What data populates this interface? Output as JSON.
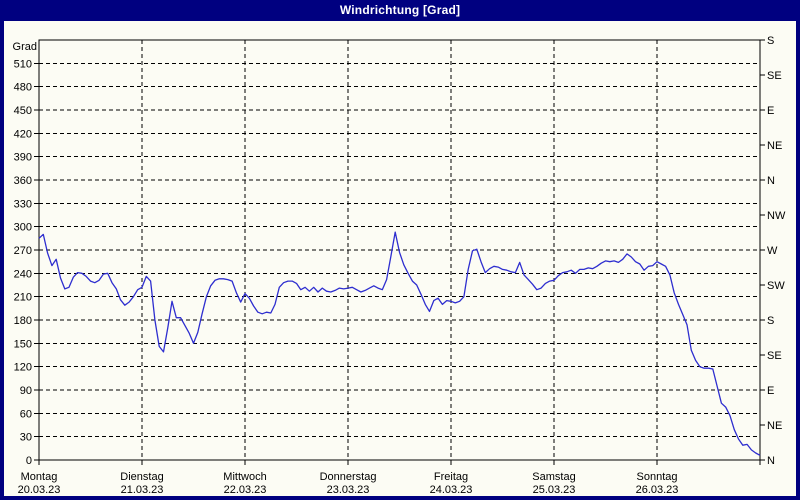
{
  "window": {
    "title": "Windrichtung [Grad]"
  },
  "colors": {
    "window_border": "#000080",
    "titlebar_bg": "#000080",
    "titlebar_text": "#ffffff",
    "chart_bg": "#fcfcf4",
    "plot_frame": "#000000",
    "grid": "#000000",
    "line": "#2e2ecf",
    "label_text": "#000000"
  },
  "chart_data": {
    "type": "line",
    "title": "Windrichtung [Grad]",
    "ylabel": "Grad",
    "ylim": [
      0,
      540
    ],
    "grid": "dashed",
    "legend_position": "none",
    "y_ticks_left": {
      "start": 0,
      "end": 510,
      "step": 30
    },
    "y_ticks_right": {
      "step_deg": 45,
      "labels_bottom_to_top": [
        "N",
        "NE",
        "E",
        "SE",
        "S",
        "SW",
        "W",
        "NW",
        "N",
        "NE",
        "E",
        "SE",
        "S"
      ]
    },
    "x_days": [
      {
        "name": "Montag",
        "date": "20.03.23"
      },
      {
        "name": "Dienstag",
        "date": "21.03.23"
      },
      {
        "name": "Mittwoch",
        "date": "22.03.23"
      },
      {
        "name": "Donnerstag",
        "date": "23.03.23"
      },
      {
        "name": "Freitag",
        "date": "24.03.23"
      },
      {
        "name": "Samstag",
        "date": "25.03.23"
      },
      {
        "name": "Sonntag",
        "date": "26.03.23"
      }
    ],
    "sampling": "hourly estimates, Monday 00:00 through Sunday 24:00",
    "series": [
      {
        "name": "Windrichtung",
        "unit": "Grad",
        "values": [
          285,
          290,
          266,
          250,
          258,
          234,
          220,
          222,
          235,
          241,
          240,
          236,
          230,
          228,
          231,
          239,
          240,
          228,
          220,
          206,
          199,
          203,
          210,
          219,
          222,
          236,
          230,
          180,
          146,
          139,
          170,
          204,
          183,
          183,
          173,
          163,
          150,
          164,
          188,
          210,
          224,
          231,
          233,
          233,
          232,
          230,
          215,
          203,
          214,
          208,
          198,
          190,
          188,
          190,
          189,
          200,
          222,
          228,
          230,
          230,
          227,
          219,
          222,
          217,
          222,
          216,
          221,
          217,
          216,
          218,
          221,
          220,
          221,
          222,
          219,
          216,
          218,
          221,
          224,
          221,
          219,
          232,
          262,
          293,
          267,
          251,
          240,
          230,
          225,
          213,
          200,
          191,
          205,
          208,
          200,
          205,
          204,
          202,
          204,
          210,
          245,
          269,
          271,
          255,
          241,
          246,
          249,
          248,
          245,
          244,
          242,
          241,
          254,
          238,
          232,
          226,
          219,
          221,
          227,
          230,
          231,
          237,
          241,
          242,
          244,
          240,
          245,
          245,
          247,
          246,
          249,
          253,
          256,
          255,
          256,
          254,
          258,
          265,
          261,
          255,
          252,
          244,
          249,
          250,
          255,
          252,
          249,
          238,
          215,
          200,
          187,
          174,
          141,
          128,
          120,
          118,
          118,
          117,
          95,
          73,
          68,
          57,
          39,
          27,
          19,
          20,
          13,
          9,
          6
        ]
      }
    ]
  }
}
